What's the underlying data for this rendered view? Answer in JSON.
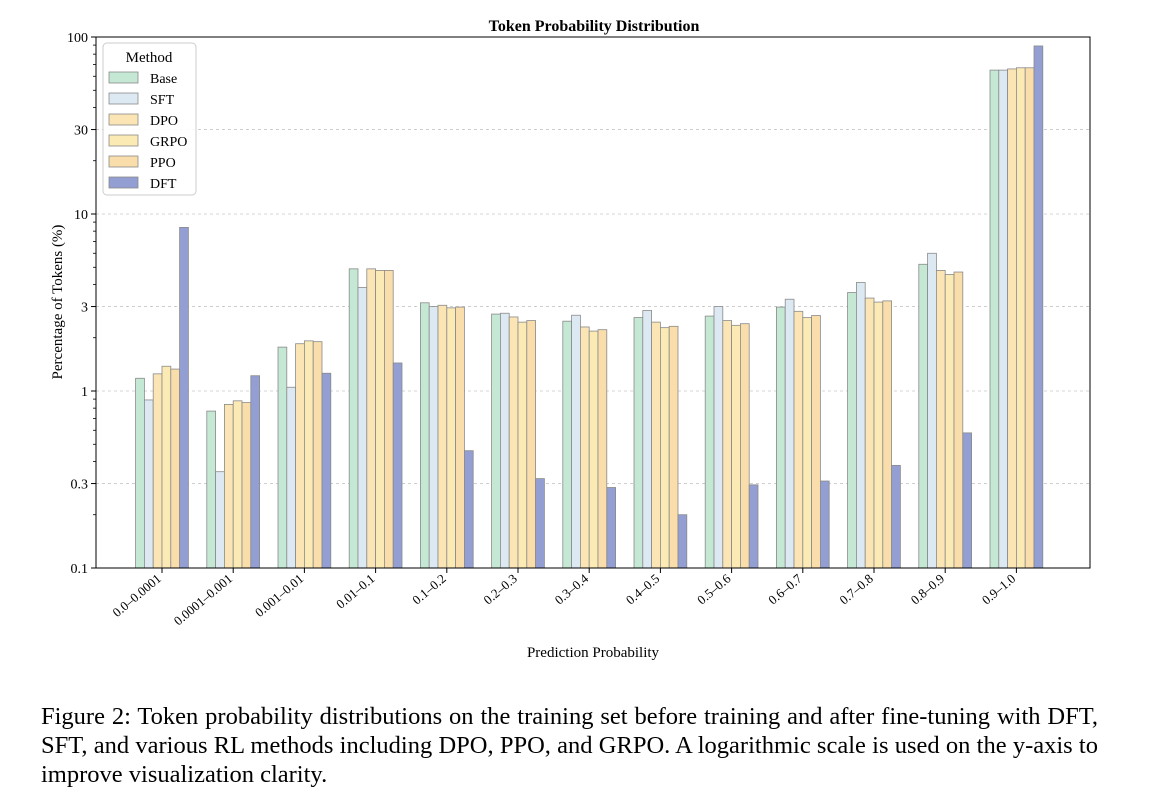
{
  "chart_data": {
    "type": "bar",
    "title": "Token Probability Distribution",
    "xlabel": "Prediction Probability",
    "ylabel": "Percentage of Tokens (%)",
    "yscale": "log",
    "ylim": [
      0.1,
      100
    ],
    "yticks": [
      0.1,
      0.3,
      1,
      3,
      10,
      30,
      100
    ],
    "ytick_labels": [
      "0.1",
      "0.3",
      "1",
      "3",
      "10",
      "30",
      "100"
    ],
    "grid": "horizontal dashed",
    "legend": {
      "title": "Method",
      "position": "top-left"
    },
    "categories": [
      "0.0–0.0001",
      "0.0001–0.001",
      "0.001–0.01",
      "0.01–0.1",
      "0.1–0.2",
      "0.2–0.3",
      "0.3–0.4",
      "0.4–0.5",
      "0.5–0.6",
      "0.6–0.7",
      "0.7–0.8",
      "0.8–0.9",
      "0.9–1.0"
    ],
    "series": [
      {
        "name": "Base",
        "color": "#c4e8d4",
        "values": [
          1.18,
          0.77,
          1.77,
          4.9,
          3.15,
          2.72,
          2.48,
          2.6,
          2.65,
          2.98,
          3.6,
          5.2,
          65
        ]
      },
      {
        "name": "SFT",
        "color": "#dde9f2",
        "values": [
          0.89,
          0.35,
          1.05,
          3.85,
          3.0,
          2.75,
          2.68,
          2.85,
          3.0,
          3.3,
          4.1,
          6.0,
          65
        ]
      },
      {
        "name": "DPO",
        "color": "#fbe5b4",
        "values": [
          1.25,
          0.84,
          1.85,
          4.9,
          3.05,
          2.62,
          2.3,
          2.45,
          2.5,
          2.82,
          3.35,
          4.8,
          66
        ]
      },
      {
        "name": "GRPO",
        "color": "#fbeab4",
        "values": [
          1.38,
          0.88,
          1.92,
          4.8,
          2.95,
          2.45,
          2.18,
          2.28,
          2.35,
          2.6,
          3.18,
          4.55,
          67
        ]
      },
      {
        "name": "PPO",
        "color": "#f9ddaa",
        "values": [
          1.33,
          0.86,
          1.9,
          4.8,
          2.98,
          2.5,
          2.22,
          2.32,
          2.4,
          2.67,
          3.23,
          4.7,
          67
        ]
      },
      {
        "name": "DFT",
        "color": "#939fd2",
        "values": [
          8.4,
          1.22,
          1.26,
          1.44,
          0.46,
          0.32,
          0.285,
          0.2,
          0.295,
          0.31,
          0.38,
          0.58,
          89
        ]
      }
    ]
  },
  "caption": "Figure 2: Token probability distributions on the training set before training and after fine-tuning with DFT, SFT, and various RL methods including DPO, PPO, and GRPO. A logarithmic scale is used on the y-axis to improve visualization clarity."
}
